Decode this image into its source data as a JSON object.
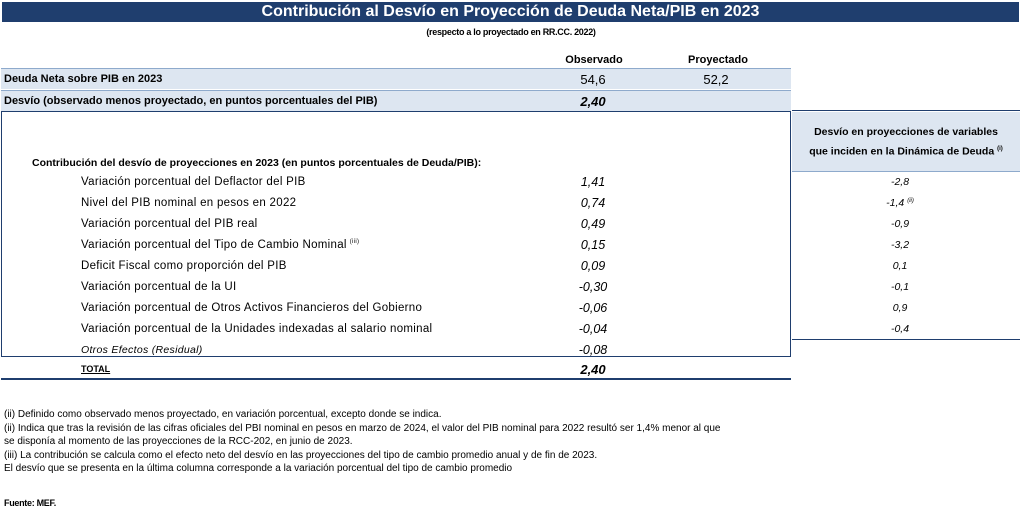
{
  "header": {
    "title": "Contribución al Desvío en Proyección de Deuda Neta/PIB en 2023",
    "subtitle": "(respecto a lo proyectado en RR.CC. 2022)"
  },
  "columns": {
    "observed": "Observado",
    "projected": "Proyectado"
  },
  "debt_row": {
    "label": "Deuda Neta sobre PIB  en 2023",
    "observed": "54,6",
    "projected": "52,2"
  },
  "deviation_row": {
    "label": "Desvío (observado menos proyectado, en puntos porcentuales del PIB)",
    "value": "2,40"
  },
  "right_panel": {
    "line1": "Desvío en proyecciones de variables",
    "line2": "que inciden en la Dinámica de Deuda",
    "line2_sup": "(i)"
  },
  "contribution_heading": "Contribución del desvío de proyecciones en 2023 (en puntos porcentuales de Deuda/PIB):",
  "items": [
    {
      "label": "Variación porcentual del Deflactor del PIB",
      "label_sup": "",
      "value": "1,41",
      "right": "-2,8",
      "right_sup": ""
    },
    {
      "label": "Nivel del PIB nominal en pesos en 2022",
      "label_sup": "",
      "value": "0,74",
      "right": "-1,4",
      "right_sup": "(ii)"
    },
    {
      "label": "Variación porcentual del PIB real",
      "label_sup": "",
      "value": "0,49",
      "right": "-0,9",
      "right_sup": ""
    },
    {
      "label": "Variación porcentual del Tipo de Cambio Nominal",
      "label_sup": "(iii)",
      "value": "0,15",
      "right": "-3,2",
      "right_sup": ""
    },
    {
      "label": "Deficit Fiscal como proporción del PIB",
      "label_sup": "",
      "value": "0,09",
      "right": "0,1",
      "right_sup": ""
    },
    {
      "label": "Variación porcentual de la UI",
      "label_sup": "",
      "value": "-0,30",
      "right": "-0,1",
      "right_sup": ""
    },
    {
      "label": "Variación porcentual de Otros Activos Financieros del Gobierno",
      "label_sup": "",
      "value": "-0,06",
      "right": "0,9",
      "right_sup": ""
    },
    {
      "label": "Variación porcentual de la Unidades indexadas al salario nominal",
      "label_sup": "",
      "value": "-0,04",
      "right": "-0,4",
      "right_sup": ""
    },
    {
      "label": "Otros Efectos (Residual)",
      "label_sup": "",
      "value": "-0,08",
      "right": "",
      "right_sup": ""
    }
  ],
  "total": {
    "label": "TOTAL",
    "value": "2,40"
  },
  "notes": [
    "(ii) Definido como observado menos proyectado, en variación porcentual, excepto donde se indica.",
    "(ii) Indica que tras la revisión de las cifras oficiales del PBI nominal en pesos en marzo de 2024, el valor del PIB nominal para 2022 resultó ser 1,4% menor al que",
    "se disponía al momento de las proyecciones de la RCC-202, en junio de 2023.",
    "(iii) La contribución se calcula como el efecto neto del desvío en las proyecciones del tipo de cambio promedio anual y de fin de 2023.",
    "El desvío que se presenta en la última columna corresponde a la variación porcentual del tipo de cambio promedio"
  ],
  "source": "Fuente: MEF."
}
